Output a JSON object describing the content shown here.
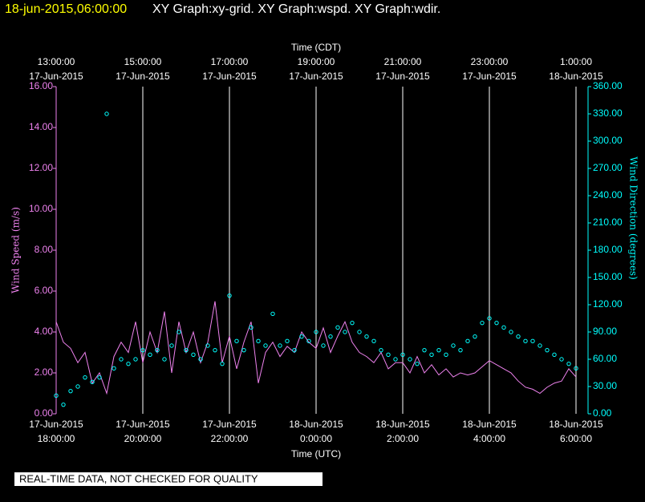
{
  "header": {
    "timestamp": "18-jun-2015,06:00:00",
    "graphs": "XY Graph:xy-grid.  XY Graph:wspd.  XY Graph:wdir."
  },
  "footer": {
    "notice": "REAL-TIME DATA, NOT CHECKED FOR QUALITY"
  },
  "chart_data": {
    "type": "line",
    "x_label": "Time (UTC)",
    "x2_label": "Time (CDT)",
    "y_label": "Wind Speed (m/s)",
    "y2_label": "Wind Direction (degrees)",
    "grid": true,
    "xlim": [
      "2015-06-17T18:00",
      "2015-06-18T06:00"
    ],
    "xticks": [
      {
        "value": "2015-06-17T18:00",
        "label": [
          "17-Jun-2015",
          "18:00:00"
        ]
      },
      {
        "value": "2015-06-17T20:00",
        "label": [
          "17-Jun-2015",
          "20:00:00"
        ]
      },
      {
        "value": "2015-06-17T22:00",
        "label": [
          "17-Jun-2015",
          "22:00:00"
        ]
      },
      {
        "value": "2015-06-18T00:00",
        "label": [
          "18-Jun-2015",
          "0:00:00"
        ]
      },
      {
        "value": "2015-06-18T02:00",
        "label": [
          "18-Jun-2015",
          "2:00:00"
        ]
      },
      {
        "value": "2015-06-18T04:00",
        "label": [
          "18-Jun-2015",
          "4:00:00"
        ]
      },
      {
        "value": "2015-06-18T06:00",
        "label": [
          "18-Jun-2015",
          "6:00:00"
        ]
      }
    ],
    "x2ticks": [
      {
        "value": "2015-06-17T18:00",
        "label": [
          "13:00:00",
          "17-Jun-2015"
        ]
      },
      {
        "value": "2015-06-17T20:00",
        "label": [
          "15:00:00",
          "17-Jun-2015"
        ]
      },
      {
        "value": "2015-06-17T22:00",
        "label": [
          "17:00:00",
          "17-Jun-2015"
        ]
      },
      {
        "value": "2015-06-18T00:00",
        "label": [
          "19:00:00",
          "17-Jun-2015"
        ]
      },
      {
        "value": "2015-06-18T02:00",
        "label": [
          "21:00:00",
          "17-Jun-2015"
        ]
      },
      {
        "value": "2015-06-18T04:00",
        "label": [
          "23:00:00",
          "17-Jun-2015"
        ]
      },
      {
        "value": "2015-06-18T06:00",
        "label": [
          "1:00:00",
          "18-Jun-2015"
        ]
      }
    ],
    "ylim": [
      0,
      16
    ],
    "yticks": [
      {
        "value": 0,
        "label": "0.00"
      },
      {
        "value": 2,
        "label": "2.00"
      },
      {
        "value": 4,
        "label": "4.00"
      },
      {
        "value": 6,
        "label": "6.00"
      },
      {
        "value": 8,
        "label": "8.00"
      },
      {
        "value": 10,
        "label": "10.00"
      },
      {
        "value": 12,
        "label": "12.00"
      },
      {
        "value": 14,
        "label": "14.00"
      },
      {
        "value": 16,
        "label": "16.00"
      }
    ],
    "y2lim": [
      0,
      360
    ],
    "y2ticks": [
      {
        "value": 0,
        "label": "0.00"
      },
      {
        "value": 30,
        "label": "30.00"
      },
      {
        "value": 60,
        "label": "60.00"
      },
      {
        "value": 90,
        "label": "90.00"
      },
      {
        "value": 120,
        "label": "120.00"
      },
      {
        "value": 150,
        "label": "150.00"
      },
      {
        "value": 180,
        "label": "180.00"
      },
      {
        "value": 210,
        "label": "210.00"
      },
      {
        "value": 240,
        "label": "240.00"
      },
      {
        "value": 270,
        "label": "270.00"
      },
      {
        "value": 300,
        "label": "300.00"
      },
      {
        "value": 330,
        "label": "330.00"
      },
      {
        "value": 360,
        "label": "360.00"
      }
    ],
    "x": [
      "2015-06-17T18:00",
      "2015-06-17T18:10",
      "2015-06-17T18:20",
      "2015-06-17T18:30",
      "2015-06-17T18:40",
      "2015-06-17T18:50",
      "2015-06-17T19:00",
      "2015-06-17T19:10",
      "2015-06-17T19:20",
      "2015-06-17T19:30",
      "2015-06-17T19:40",
      "2015-06-17T19:50",
      "2015-06-17T20:00",
      "2015-06-17T20:10",
      "2015-06-17T20:20",
      "2015-06-17T20:30",
      "2015-06-17T20:40",
      "2015-06-17T20:50",
      "2015-06-17T21:00",
      "2015-06-17T21:10",
      "2015-06-17T21:20",
      "2015-06-17T21:30",
      "2015-06-17T21:40",
      "2015-06-17T21:50",
      "2015-06-17T22:00",
      "2015-06-17T22:10",
      "2015-06-17T22:20",
      "2015-06-17T22:30",
      "2015-06-17T22:40",
      "2015-06-17T22:50",
      "2015-06-17T23:00",
      "2015-06-17T23:10",
      "2015-06-17T23:20",
      "2015-06-17T23:30",
      "2015-06-17T23:40",
      "2015-06-17T23:50",
      "2015-06-18T00:00",
      "2015-06-18T00:10",
      "2015-06-18T00:20",
      "2015-06-18T00:30",
      "2015-06-18T00:40",
      "2015-06-18T00:50",
      "2015-06-18T01:00",
      "2015-06-18T01:10",
      "2015-06-18T01:20",
      "2015-06-18T01:30",
      "2015-06-18T01:40",
      "2015-06-18T01:50",
      "2015-06-18T02:00",
      "2015-06-18T02:10",
      "2015-06-18T02:20",
      "2015-06-18T02:30",
      "2015-06-18T02:40",
      "2015-06-18T02:50",
      "2015-06-18T03:00",
      "2015-06-18T03:10",
      "2015-06-18T03:20",
      "2015-06-18T03:30",
      "2015-06-18T03:40",
      "2015-06-18T03:50",
      "2015-06-18T04:00",
      "2015-06-18T04:10",
      "2015-06-18T04:20",
      "2015-06-18T04:30",
      "2015-06-18T04:40",
      "2015-06-18T04:50",
      "2015-06-18T05:00",
      "2015-06-18T05:10",
      "2015-06-18T05:20",
      "2015-06-18T05:30",
      "2015-06-18T05:40",
      "2015-06-18T05:50",
      "2015-06-18T06:00"
    ],
    "series": [
      {
        "name": "wspd",
        "color": "#ee82ee",
        "values": [
          4.5,
          3.5,
          3.2,
          2.5,
          3.0,
          1.5,
          2.0,
          1.0,
          2.8,
          3.5,
          3.0,
          4.5,
          2.5,
          4.0,
          3.0,
          5.0,
          2.0,
          4.5,
          3.0,
          4.0,
          2.5,
          3.5,
          5.5,
          2.5,
          3.8,
          2.2,
          3.5,
          4.5,
          1.5,
          3.0,
          3.5,
          2.8,
          3.3,
          3.0,
          4.0,
          3.5,
          3.2,
          4.2,
          3.0,
          3.8,
          4.5,
          3.5,
          3.0,
          2.8,
          2.5,
          3.0,
          2.2,
          2.5,
          2.5,
          2.0,
          2.8,
          2.0,
          2.4,
          1.9,
          2.2,
          1.8,
          2.0,
          1.9,
          2.0,
          2.3,
          2.6,
          2.4,
          2.2,
          2.0,
          1.6,
          1.3,
          1.2,
          1.0,
          1.3,
          1.5,
          1.6,
          2.2,
          1.8
        ]
      },
      {
        "name": "wdir",
        "color": "#00ffff",
        "axis": "y2",
        "values": [
          20,
          10,
          25,
          30,
          40,
          35,
          40,
          330,
          50,
          60,
          55,
          60,
          70,
          65,
          70,
          60,
          75,
          90,
          70,
          65,
          60,
          75,
          70,
          55,
          130,
          80,
          70,
          95,
          80,
          75,
          110,
          75,
          80,
          70,
          85,
          80,
          90,
          75,
          85,
          95,
          90,
          100,
          90,
          85,
          80,
          70,
          65,
          60,
          65,
          60,
          55,
          70,
          65,
          70,
          65,
          75,
          70,
          80,
          85,
          100,
          105,
          100,
          95,
          90,
          85,
          80,
          80,
          75,
          70,
          65,
          60,
          55,
          50
        ]
      }
    ]
  }
}
